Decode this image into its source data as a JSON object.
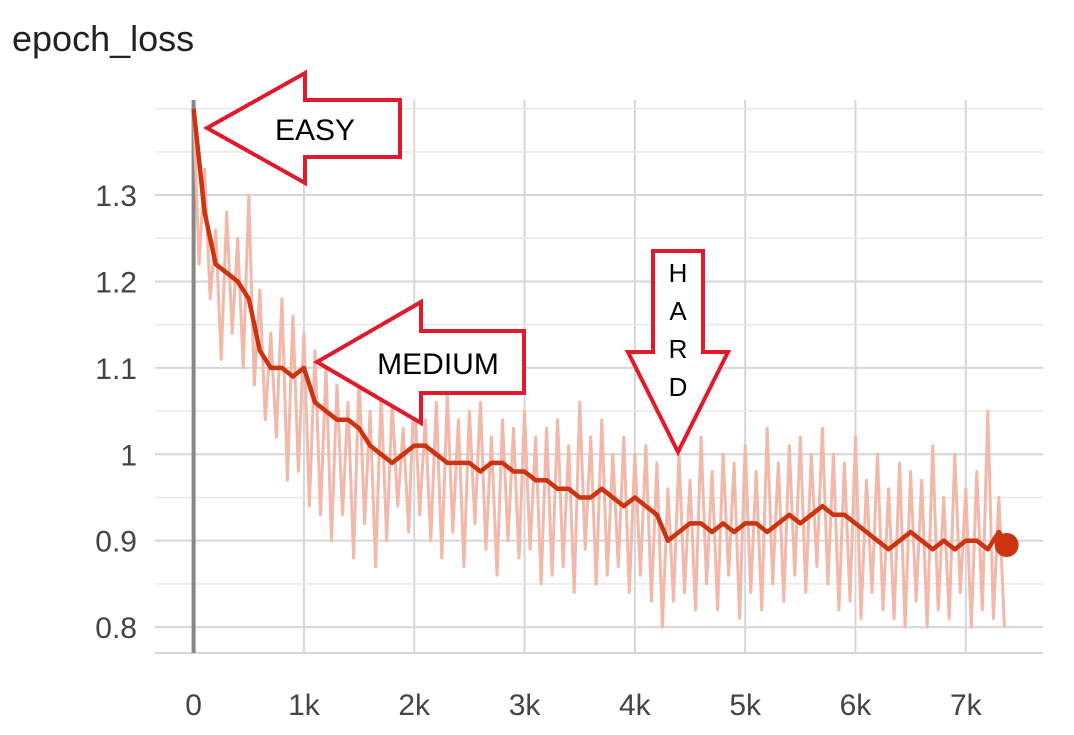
{
  "chart_data": {
    "type": "line",
    "title": "epoch_loss",
    "xlabel": "",
    "ylabel": "",
    "xlim": [
      -350,
      7700
    ],
    "ylim": [
      0.77,
      1.41
    ],
    "x_ticks": [
      0,
      1000,
      2000,
      3000,
      4000,
      5000,
      6000,
      7000
    ],
    "x_tick_labels": [
      "0",
      "1k",
      "2k",
      "3k",
      "4k",
      "5k",
      "6k",
      "7k"
    ],
    "y_ticks": [
      0.8,
      0.9,
      1.0,
      1.1,
      1.2,
      1.3
    ],
    "y_tick_labels": [
      "0.8",
      "0.9",
      "1",
      "1.1",
      "1.2",
      "1.3"
    ],
    "grid": true,
    "colors": {
      "smoothed": "#cc3311",
      "raw": "#f2b8aa",
      "axis": "#888888",
      "grid": "#d6d6d6",
      "annotation_border": "#e0192b"
    },
    "series": [
      {
        "role": "smoothed",
        "x": [
          0,
          100,
          200,
          300,
          400,
          500,
          600,
          700,
          800,
          900,
          1000,
          1100,
          1200,
          1300,
          1400,
          1500,
          1600,
          1700,
          1800,
          1900,
          2000,
          2100,
          2200,
          2300,
          2400,
          2500,
          2600,
          2700,
          2800,
          2900,
          3000,
          3100,
          3200,
          3300,
          3400,
          3500,
          3600,
          3700,
          3800,
          3900,
          4000,
          4100,
          4200,
          4300,
          4400,
          4500,
          4600,
          4700,
          4800,
          4900,
          5000,
          5100,
          5200,
          5300,
          5400,
          5500,
          5600,
          5700,
          5800,
          5900,
          6000,
          6100,
          6200,
          6300,
          6400,
          6500,
          6600,
          6700,
          6800,
          6900,
          7000,
          7100,
          7200,
          7300,
          7370
        ],
        "y": [
          1.4,
          1.28,
          1.22,
          1.21,
          1.2,
          1.18,
          1.12,
          1.1,
          1.1,
          1.09,
          1.1,
          1.06,
          1.05,
          1.04,
          1.04,
          1.03,
          1.01,
          1.0,
          0.99,
          1.0,
          1.01,
          1.01,
          1.0,
          0.99,
          0.99,
          0.99,
          0.98,
          0.99,
          0.99,
          0.98,
          0.98,
          0.97,
          0.97,
          0.96,
          0.96,
          0.95,
          0.95,
          0.96,
          0.95,
          0.94,
          0.95,
          0.94,
          0.93,
          0.9,
          0.91,
          0.92,
          0.92,
          0.91,
          0.92,
          0.91,
          0.92,
          0.92,
          0.91,
          0.92,
          0.93,
          0.92,
          0.93,
          0.94,
          0.93,
          0.93,
          0.92,
          0.91,
          0.9,
          0.89,
          0.9,
          0.91,
          0.9,
          0.89,
          0.9,
          0.89,
          0.9,
          0.9,
          0.89,
          0.91,
          0.895
        ]
      },
      {
        "role": "raw",
        "x": [
          0,
          50,
          100,
          150,
          200,
          250,
          300,
          350,
          400,
          450,
          500,
          550,
          600,
          650,
          700,
          750,
          800,
          850,
          900,
          950,
          1000,
          1050,
          1100,
          1150,
          1200,
          1250,
          1300,
          1350,
          1400,
          1450,
          1500,
          1550,
          1600,
          1650,
          1700,
          1750,
          1800,
          1850,
          1900,
          1950,
          2000,
          2050,
          2100,
          2150,
          2200,
          2250,
          2300,
          2350,
          2400,
          2450,
          2500,
          2550,
          2600,
          2650,
          2700,
          2750,
          2800,
          2850,
          2900,
          2950,
          3000,
          3050,
          3100,
          3150,
          3200,
          3250,
          3300,
          3350,
          3400,
          3450,
          3500,
          3550,
          3600,
          3650,
          3700,
          3750,
          3800,
          3850,
          3900,
          3950,
          4000,
          4050,
          4100,
          4150,
          4200,
          4250,
          4300,
          4350,
          4400,
          4450,
          4500,
          4550,
          4600,
          4650,
          4700,
          4750,
          4800,
          4850,
          4900,
          4950,
          5000,
          5050,
          5100,
          5150,
          5200,
          5250,
          5300,
          5350,
          5400,
          5450,
          5500,
          5550,
          5600,
          5650,
          5700,
          5750,
          5800,
          5850,
          5900,
          5950,
          6000,
          6050,
          6100,
          6150,
          6200,
          6250,
          6300,
          6350,
          6400,
          6450,
          6500,
          6550,
          6600,
          6650,
          6700,
          6750,
          6800,
          6850,
          6900,
          6950,
          7000,
          7050,
          7100,
          7150,
          7200,
          7250,
          7300,
          7350
        ],
        "y": [
          1.4,
          1.22,
          1.33,
          1.18,
          1.26,
          1.11,
          1.28,
          1.14,
          1.25,
          1.1,
          1.3,
          1.08,
          1.19,
          1.04,
          1.14,
          1.02,
          1.18,
          0.97,
          1.16,
          0.98,
          1.14,
          0.94,
          1.12,
          0.93,
          1.1,
          0.9,
          1.08,
          0.93,
          1.06,
          0.88,
          1.09,
          0.92,
          1.05,
          0.87,
          1.07,
          0.9,
          1.06,
          0.94,
          1.03,
          0.91,
          1.08,
          0.93,
          1.04,
          0.9,
          1.06,
          0.88,
          1.07,
          0.91,
          1.04,
          0.87,
          1.05,
          0.92,
          1.06,
          0.89,
          1.02,
          0.86,
          1.04,
          0.9,
          1.03,
          0.88,
          1.05,
          0.89,
          1.02,
          0.85,
          1.03,
          0.86,
          1.04,
          0.87,
          1.01,
          0.84,
          1.06,
          0.89,
          1.02,
          0.85,
          1.04,
          0.86,
          1.0,
          0.87,
          1.02,
          0.84,
          1.0,
          0.86,
          1.01,
          0.83,
          0.99,
          0.8,
          0.96,
          0.83,
          1.0,
          0.84,
          0.97,
          0.82,
          1.02,
          0.85,
          0.98,
          0.82,
          1.0,
          0.86,
          0.99,
          0.81,
          1.01,
          0.84,
          0.98,
          0.82,
          1.03,
          0.85,
          0.99,
          0.83,
          1.01,
          0.86,
          1.02,
          0.84,
          1.0,
          0.87,
          1.03,
          0.85,
          1.0,
          0.82,
          0.99,
          0.83,
          1.02,
          0.81,
          0.97,
          0.84,
          1.0,
          0.82,
          0.96,
          0.81,
          0.99,
          0.8,
          0.98,
          0.83,
          0.97,
          0.8,
          1.01,
          0.82,
          0.95,
          0.81,
          1.0,
          0.84,
          0.96,
          0.8,
          0.98,
          0.82,
          1.05,
          0.81,
          0.95,
          0.8
        ]
      }
    ],
    "annotations": [
      {
        "text": "EASY",
        "direction": "left",
        "points_to_x": 20,
        "points_to_y": 1.4
      },
      {
        "text": "MEDIUM",
        "direction": "left",
        "points_to_x": 1050,
        "points_to_y": 1.11
      },
      {
        "text": "HARD",
        "direction": "down",
        "points_to_x": 4380,
        "points_to_y": 1.01
      }
    ],
    "end_marker": {
      "x": 7370,
      "y": 0.895
    }
  }
}
